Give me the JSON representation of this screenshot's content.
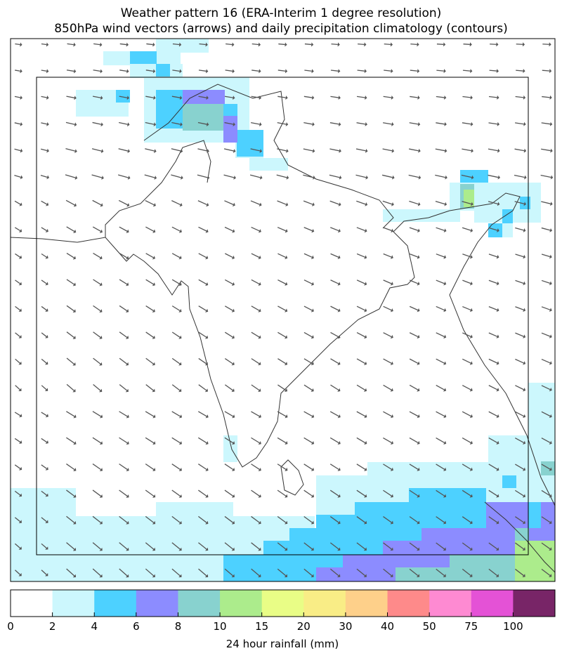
{
  "title": "Weather pattern 16 (ERA-Interim 1 degree resolution)",
  "subtitle": "850hPa wind vectors (arrows) and daily precipitation climatology (contours)",
  "colorbar": {
    "ticks": [
      0,
      2,
      4,
      6,
      8,
      10,
      15,
      20,
      30,
      40,
      50,
      75,
      100
    ],
    "colors": [
      "#ffffff",
      "#ccf7fd",
      "#4dd1ff",
      "#8c8cff",
      "#88d2cf",
      "#acec8c",
      "#e9fd86",
      "#f9ed86",
      "#fed08a",
      "#fe8a8a",
      "#fe8ad2",
      "#e452d6",
      "#782567"
    ],
    "label": "24 hour rainfall (mm)"
  }
}
